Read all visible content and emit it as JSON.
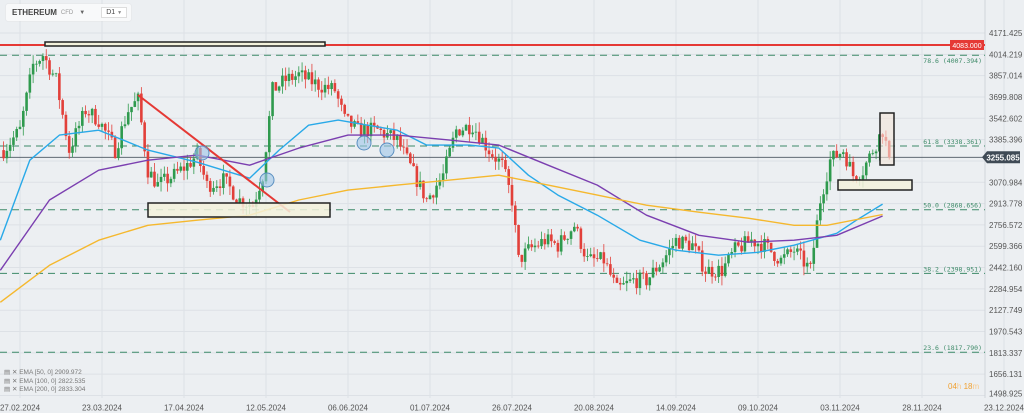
{
  "header": {
    "symbol": "ETHEREUM",
    "type": "CFD",
    "timeframe": "D1"
  },
  "timer": {
    "hours": "04",
    "h": "h",
    "minutes": "18",
    "m": "m"
  },
  "legend": [
    {
      "label": "EMA [50, 0] 2909.972",
      "color": "#29a9e8"
    },
    {
      "label": "EMA [100, 0] 2822.535",
      "color": "#7b3fb0"
    },
    {
      "label": "EMA [200, 0] 2833.304",
      "color": "#f5b82e"
    }
  ],
  "colors": {
    "up": "#2f9a4e",
    "down": "#e2403a",
    "resistance": "#e53935",
    "fib": "#3d8a68",
    "price_line": "#4a5560"
  },
  "chart_data": {
    "type": "candlestick",
    "instrument": "ETHEREUM",
    "ylim": [
      1498.925,
      4171.425
    ],
    "y_ticks": [
      "4171.425",
      "4014.219",
      "3857.014",
      "3699.808",
      "3542.602",
      "3385.396",
      "3228.191",
      "3070.984",
      "2913.778",
      "2756.572",
      "2599.366",
      "2442.160",
      "2284.954",
      "2127.749",
      "1970.543",
      "1813.337",
      "1656.131",
      "1498.925"
    ],
    "x_ticks": [
      "27.02.2024",
      "23.03.2024",
      "17.04.2024",
      "12.05.2024",
      "06.06.2024",
      "01.07.2024",
      "26.07.2024",
      "20.08.2024",
      "14.09.2024",
      "09.10.2024",
      "03.11.2024",
      "28.11.2024",
      "23.12.2024"
    ],
    "close_path": [
      [
        "2024-02-22",
        3308
      ],
      [
        "2024-02-27",
        3455
      ],
      [
        "2024-03-02",
        3935
      ],
      [
        "2024-03-05",
        4010
      ],
      [
        "2024-03-09",
        3825
      ],
      [
        "2024-03-13",
        3308
      ],
      [
        "2024-03-18",
        3603
      ],
      [
        "2024-03-22",
        3530
      ],
      [
        "2024-03-27",
        3308
      ],
      [
        "2024-03-31",
        3603
      ],
      [
        "2024-04-03",
        3677
      ],
      [
        "2024-04-06",
        3160
      ],
      [
        "2024-04-09",
        3050
      ],
      [
        "2024-04-14",
        3123
      ],
      [
        "2024-04-18",
        3197
      ],
      [
        "2024-04-21",
        3271
      ],
      [
        "2024-04-24",
        3050
      ],
      [
        "2024-04-29",
        3087
      ],
      [
        "2024-05-04",
        2940
      ],
      [
        "2024-05-08",
        2902
      ],
      [
        "2024-05-11",
        3123
      ],
      [
        "2024-05-14",
        3750
      ],
      [
        "2024-05-18",
        3825
      ],
      [
        "2024-05-22",
        3862
      ],
      [
        "2024-05-28",
        3788
      ],
      [
        "2024-06-02",
        3750
      ],
      [
        "2024-06-05",
        3530
      ],
      [
        "2024-06-09",
        3455
      ],
      [
        "2024-06-15",
        3455
      ],
      [
        "2024-06-21",
        3382
      ],
      [
        "2024-06-27",
        3087
      ],
      [
        "2024-06-30",
        2940
      ],
      [
        "2024-07-05",
        3123
      ],
      [
        "2024-07-09",
        3455
      ],
      [
        "2024-07-14",
        3492
      ],
      [
        "2024-07-19",
        3308
      ],
      [
        "2024-07-23",
        3197
      ],
      [
        "2024-07-26",
        2940
      ],
      [
        "2024-07-28",
        2496
      ],
      [
        "2024-07-31",
        2570
      ],
      [
        "2024-08-05",
        2643
      ],
      [
        "2024-08-09",
        2606
      ],
      [
        "2024-08-14",
        2754
      ],
      [
        "2024-08-18",
        2496
      ],
      [
        "2024-08-23",
        2496
      ],
      [
        "2024-08-27",
        2275
      ],
      [
        "2024-09-01",
        2348
      ],
      [
        "2024-09-05",
        2348
      ],
      [
        "2024-09-10",
        2496
      ],
      [
        "2024-09-14",
        2643
      ],
      [
        "2024-09-19",
        2606
      ],
      [
        "2024-09-23",
        2422
      ],
      [
        "2024-09-28",
        2422
      ],
      [
        "2024-10-02",
        2570
      ],
      [
        "2024-10-07",
        2643
      ],
      [
        "2024-10-11",
        2606
      ],
      [
        "2024-10-16",
        2496
      ],
      [
        "2024-10-20",
        2570
      ],
      [
        "2024-10-25",
        2422
      ],
      [
        "2024-10-28",
        2940
      ],
      [
        "2024-10-31",
        3234
      ],
      [
        "2024-11-04",
        3308
      ],
      [
        "2024-11-07",
        3123
      ],
      [
        "2024-11-10",
        3160
      ],
      [
        "2024-11-13",
        3308
      ],
      [
        "2024-11-16",
        3455
      ],
      [
        "2024-11-18",
        3255.085
      ]
    ],
    "series": [
      {
        "name": "EMA [50, 0]",
        "color": "#29a9e8",
        "points": [
          [
            "2024-02-21",
            2644
          ],
          [
            "2024-03-01",
            3234
          ],
          [
            "2024-03-10",
            3419
          ],
          [
            "2024-03-22",
            3455
          ],
          [
            "2024-04-06",
            3308
          ],
          [
            "2024-04-21",
            3219
          ],
          [
            "2024-05-07",
            3101
          ],
          [
            "2024-05-16",
            3308
          ],
          [
            "2024-05-25",
            3492
          ],
          [
            "2024-06-03",
            3529
          ],
          [
            "2024-06-12",
            3492
          ],
          [
            "2024-06-21",
            3455
          ],
          [
            "2024-06-30",
            3345
          ],
          [
            "2024-07-13",
            3345
          ],
          [
            "2024-07-22",
            3323
          ],
          [
            "2024-07-31",
            3123
          ],
          [
            "2024-08-09",
            2976
          ],
          [
            "2024-08-21",
            2828
          ],
          [
            "2024-09-03",
            2644
          ],
          [
            "2024-09-14",
            2570
          ],
          [
            "2024-09-27",
            2533
          ],
          [
            "2024-10-09",
            2555
          ],
          [
            "2024-10-20",
            2607
          ],
          [
            "2024-11-02",
            2695
          ],
          [
            "2024-11-08",
            2791
          ],
          [
            "2024-11-16",
            2909.972
          ]
        ]
      },
      {
        "name": "EMA [100, 0]",
        "color": "#7b3fb0",
        "points": [
          [
            "2024-02-21",
            2422
          ],
          [
            "2024-03-07",
            2940
          ],
          [
            "2024-03-22",
            3160
          ],
          [
            "2024-04-06",
            3234
          ],
          [
            "2024-04-21",
            3271
          ],
          [
            "2024-05-07",
            3197
          ],
          [
            "2024-05-22",
            3323
          ],
          [
            "2024-06-06",
            3419
          ],
          [
            "2024-06-21",
            3419
          ],
          [
            "2024-07-07",
            3382
          ],
          [
            "2024-07-22",
            3345
          ],
          [
            "2024-08-06",
            3197
          ],
          [
            "2024-08-21",
            3050
          ],
          [
            "2024-09-05",
            2828
          ],
          [
            "2024-09-21",
            2680
          ],
          [
            "2024-10-06",
            2629
          ],
          [
            "2024-10-20",
            2644
          ],
          [
            "2024-11-02",
            2680
          ],
          [
            "2024-11-16",
            2822.535
          ]
        ]
      },
      {
        "name": "EMA [200, 0]",
        "color": "#f5b82e",
        "points": [
          [
            "2024-02-21",
            2186
          ],
          [
            "2024-03-07",
            2459
          ],
          [
            "2024-03-22",
            2644
          ],
          [
            "2024-04-06",
            2754
          ],
          [
            "2024-04-21",
            2791
          ],
          [
            "2024-05-07",
            2828
          ],
          [
            "2024-05-22",
            2940
          ],
          [
            "2024-06-06",
            3013
          ],
          [
            "2024-06-21",
            3050
          ],
          [
            "2024-07-07",
            3087
          ],
          [
            "2024-07-22",
            3123
          ],
          [
            "2024-08-06",
            3050
          ],
          [
            "2024-08-21",
            2976
          ],
          [
            "2024-09-05",
            2902
          ],
          [
            "2024-09-21",
            2850
          ],
          [
            "2024-10-06",
            2806
          ],
          [
            "2024-10-20",
            2754
          ],
          [
            "2024-10-30",
            2754
          ],
          [
            "2024-11-16",
            2833.304
          ]
        ]
      }
    ],
    "resistance": {
      "price": 4083.0,
      "label": "4083.000"
    },
    "current_price": {
      "price": 3255.085,
      "label": "3255.085"
    },
    "fib_levels": [
      {
        "price": 4007.394,
        "label": "78.6 (4007.394)"
      },
      {
        "price": 3338.361,
        "label": "61.8 (3338.361)"
      },
      {
        "price": 2868.656,
        "label": "50.0 (2868.656)"
      },
      {
        "price": 2398.951,
        "label": "38.2 (2398.951)"
      },
      {
        "price": 1817.79,
        "label": "23.6 (1817.790)"
      }
    ]
  }
}
